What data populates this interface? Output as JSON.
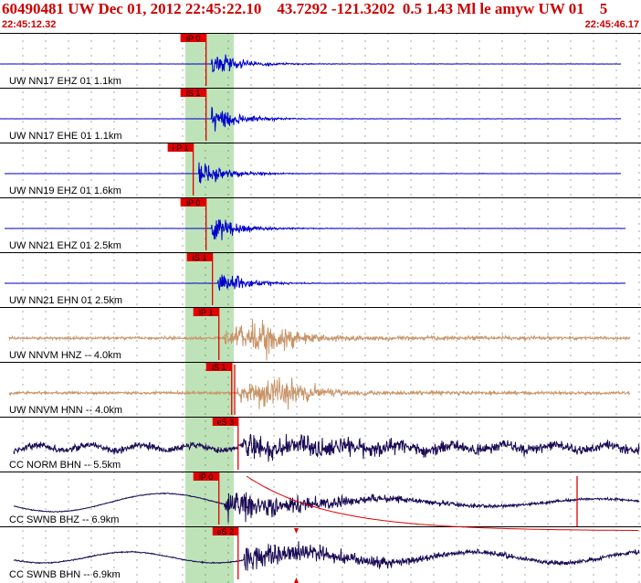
{
  "header": {
    "title": "60490481 UW Dec 01, 2012 22:45:22.10    43.7292 -121.3202  0.5 1.43 Ml le amyw UW 01    5",
    "start_time": "22:45:12.32",
    "end_time": "22:45:46.17"
  },
  "traces": [
    {
      "label": "UW NN17 EHZ 01 1.1km",
      "pick": "iP 0",
      "color": "#0000cc",
      "kind": "bb",
      "onset": 0.33,
      "ext_left": 0,
      "ext_right": 680
    },
    {
      "label": "UW NN17 EHE 01 1.1km",
      "pick": "iS 1",
      "color": "#0000cc",
      "kind": "bb",
      "onset": 0.33,
      "ext_left": 0,
      "ext_right": 680
    },
    {
      "label": "UW NN19 EHZ 01 1.6km",
      "pick": "i P 1",
      "color": "#0000cc",
      "kind": "bb",
      "onset": 0.31,
      "ext_left": 5,
      "ext_right": 680
    },
    {
      "label": "UW NN21 EHZ 01 2.5km",
      "pick": "iP 0",
      "color": "#0000cc",
      "kind": "bb",
      "onset": 0.33,
      "ext_left": 5,
      "ext_right": 685
    },
    {
      "label": "UW NN21 EHN 01 2.5km",
      "pick": "iS 1",
      "color": "#0000cc",
      "kind": "bb",
      "onset": 0.34,
      "ext_left": 5,
      "ext_right": 685
    },
    {
      "label": "UW NNVM HNZ -- 4.0km",
      "pick": "iP 1",
      "color": "#c8956a",
      "kind": "sm",
      "onset": 0.35,
      "ext_left": 10,
      "ext_right": 690
    },
    {
      "label": "UW NNVM HNN -- 4.0km",
      "pick": "iS 1",
      "color": "#c8956a",
      "kind": "sm",
      "onset": 0.37,
      "ext_left": 10,
      "ext_right": 690
    },
    {
      "label": "CC NORM BHN -- 5.5km",
      "pick": "eS 3",
      "color": "#1a0a55",
      "kind": "lp",
      "onset": 0.38,
      "ext_left": 15,
      "ext_right": 700
    },
    {
      "label": "CC SWNB BHZ -- 6.9km",
      "pick": "iP 0",
      "color": "#1a0a55",
      "kind": "lp2",
      "onset": 0.35,
      "ext_left": 15,
      "ext_right": 700
    },
    {
      "label": "CC SWNB BHN -- 6.9km",
      "pick": "eS 2",
      "color": "#1a0a55",
      "kind": "lp3",
      "onset": 0.38,
      "ext_left": 15,
      "ext_right": 700
    }
  ]
}
